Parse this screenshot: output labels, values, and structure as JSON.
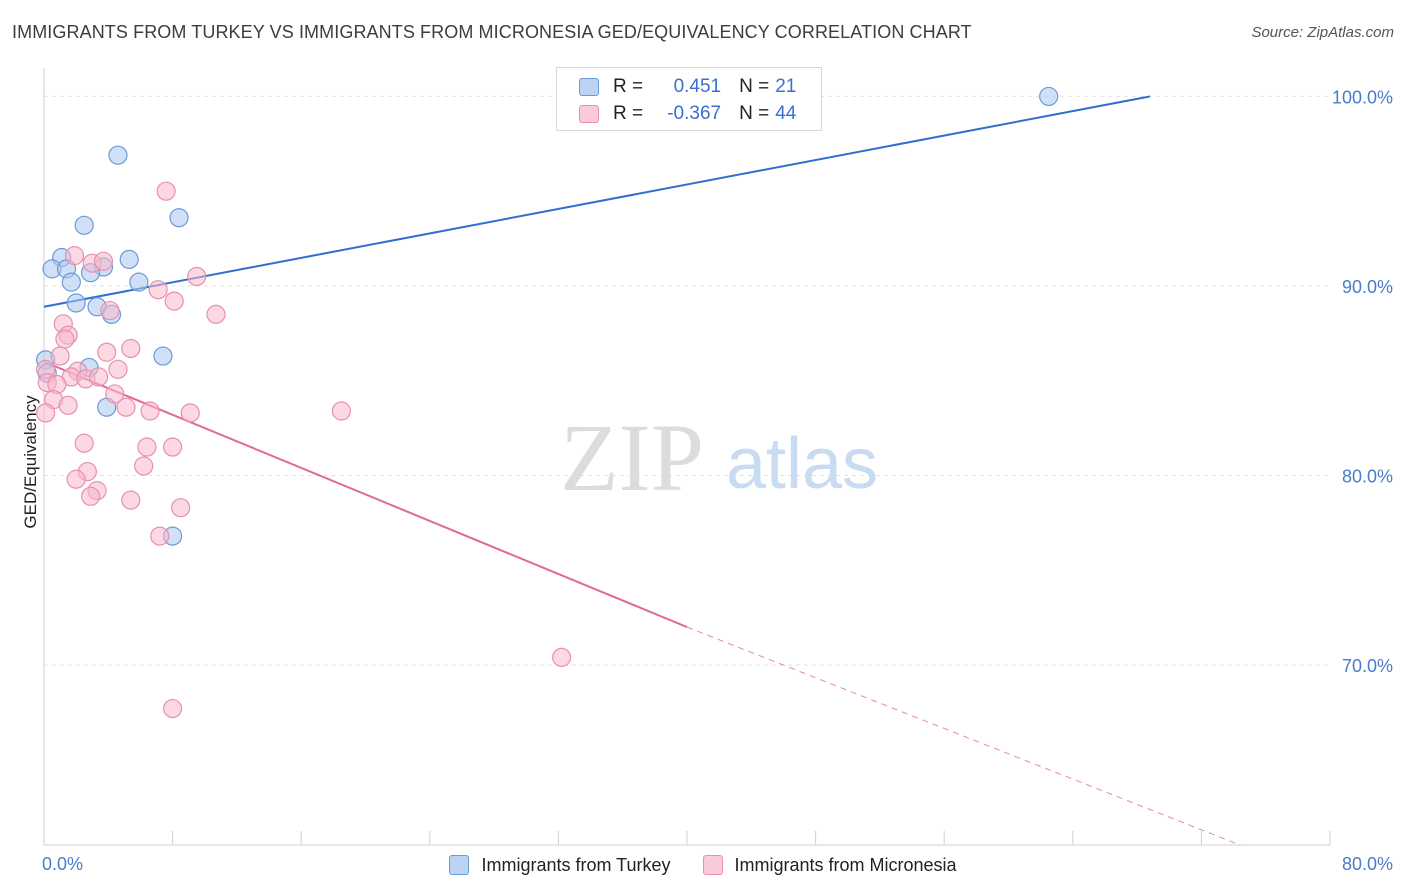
{
  "title": "IMMIGRANTS FROM TURKEY VS IMMIGRANTS FROM MICRONESIA GED/EQUIVALENCY CORRELATION CHART",
  "source": "Source: ZipAtlas.com",
  "watermark": {
    "zip": "ZIP",
    "atlas": "atlas"
  },
  "legend": {
    "turkey": {
      "r_label": "R =",
      "r_value": "0.451",
      "n_label": "N =",
      "n_value": "21"
    },
    "micronesia": {
      "r_label": "R =",
      "r_value": "-0.367",
      "n_label": "N =",
      "n_value": "44"
    }
  },
  "bottom_legend": {
    "turkey": "Immigrants from Turkey",
    "micronesia": "Immigrants from Micronesia"
  },
  "colors": {
    "turkey_fill": "#a9c8f0",
    "turkey_stroke": "#6c9ad6",
    "turkey_line": "#2f6fcf",
    "micronesia_fill": "#f7b8cb",
    "micronesia_stroke": "#e890ae",
    "micronesia_line": "#e06a95"
  },
  "chart_data": {
    "type": "scatter",
    "title": "IMMIGRANTS FROM TURKEY VS IMMIGRANTS FROM MICRONESIA GED/EQUIVALENCY CORRELATION CHART",
    "xlabel": "",
    "ylabel": "GED/Equivalency",
    "xlim": [
      0,
      80
    ],
    "ylim": [
      60.5,
      101.5
    ],
    "x_tick_labels": [
      "0.0%",
      "80.0%"
    ],
    "y_ticks": [
      70,
      80,
      90,
      100
    ],
    "y_tick_labels": [
      "70.0%",
      "80.0%",
      "90.0%",
      "100.0%"
    ],
    "grid": true,
    "series": [
      {
        "name": "Immigrants from Turkey",
        "points": [
          [
            4.6,
            96.9
          ],
          [
            8.4,
            93.6
          ],
          [
            2.5,
            93.2
          ],
          [
            1.1,
            91.5
          ],
          [
            5.3,
            91.4
          ],
          [
            0.5,
            90.9
          ],
          [
            1.4,
            90.9
          ],
          [
            3.7,
            91.0
          ],
          [
            2.9,
            90.7
          ],
          [
            1.7,
            90.2
          ],
          [
            5.9,
            90.2
          ],
          [
            2.0,
            89.1
          ],
          [
            3.3,
            88.9
          ],
          [
            4.2,
            88.5
          ],
          [
            7.4,
            86.3
          ],
          [
            0.1,
            86.1
          ],
          [
            2.8,
            85.7
          ],
          [
            3.9,
            83.6
          ],
          [
            8.0,
            76.8
          ],
          [
            62.5,
            100.0
          ],
          [
            0.2,
            85.4
          ]
        ],
        "trend": {
          "x": [
            0,
            68.8
          ],
          "y": [
            88.9,
            100.0
          ],
          "r": 0.451,
          "n": 21
        }
      },
      {
        "name": "Immigrants from Micronesia",
        "points": [
          [
            7.6,
            95.0
          ],
          [
            1.9,
            91.6
          ],
          [
            3.0,
            91.2
          ],
          [
            3.7,
            91.3
          ],
          [
            9.5,
            90.5
          ],
          [
            7.1,
            89.8
          ],
          [
            8.1,
            89.2
          ],
          [
            4.1,
            88.7
          ],
          [
            10.7,
            88.5
          ],
          [
            1.2,
            88.0
          ],
          [
            1.5,
            87.4
          ],
          [
            1.3,
            87.2
          ],
          [
            5.4,
            86.7
          ],
          [
            3.9,
            86.5
          ],
          [
            1.0,
            86.3
          ],
          [
            0.1,
            85.6
          ],
          [
            2.1,
            85.5
          ],
          [
            4.6,
            85.6
          ],
          [
            1.7,
            85.2
          ],
          [
            2.6,
            85.1
          ],
          [
            3.4,
            85.2
          ],
          [
            0.2,
            84.9
          ],
          [
            0.8,
            84.8
          ],
          [
            4.4,
            84.3
          ],
          [
            0.6,
            84.0
          ],
          [
            1.5,
            83.7
          ],
          [
            5.1,
            83.6
          ],
          [
            6.6,
            83.4
          ],
          [
            9.1,
            83.3
          ],
          [
            18.5,
            83.4
          ],
          [
            0.1,
            83.3
          ],
          [
            2.5,
            81.7
          ],
          [
            6.4,
            81.5
          ],
          [
            8.0,
            81.5
          ],
          [
            6.2,
            80.5
          ],
          [
            2.7,
            80.2
          ],
          [
            2.0,
            79.8
          ],
          [
            3.3,
            79.2
          ],
          [
            2.9,
            78.9
          ],
          [
            5.4,
            78.7
          ],
          [
            8.5,
            78.3
          ],
          [
            7.2,
            76.8
          ],
          [
            32.2,
            70.4
          ],
          [
            8.0,
            67.7
          ]
        ],
        "trend": {
          "x": [
            0,
            40.0
          ],
          "y": [
            86.0,
            72.0
          ],
          "dashed_extension": {
            "x": [
              40.0,
              74.4
            ],
            "y": [
              72.0,
              60.5
            ]
          },
          "r": -0.367,
          "n": 44
        }
      }
    ]
  }
}
